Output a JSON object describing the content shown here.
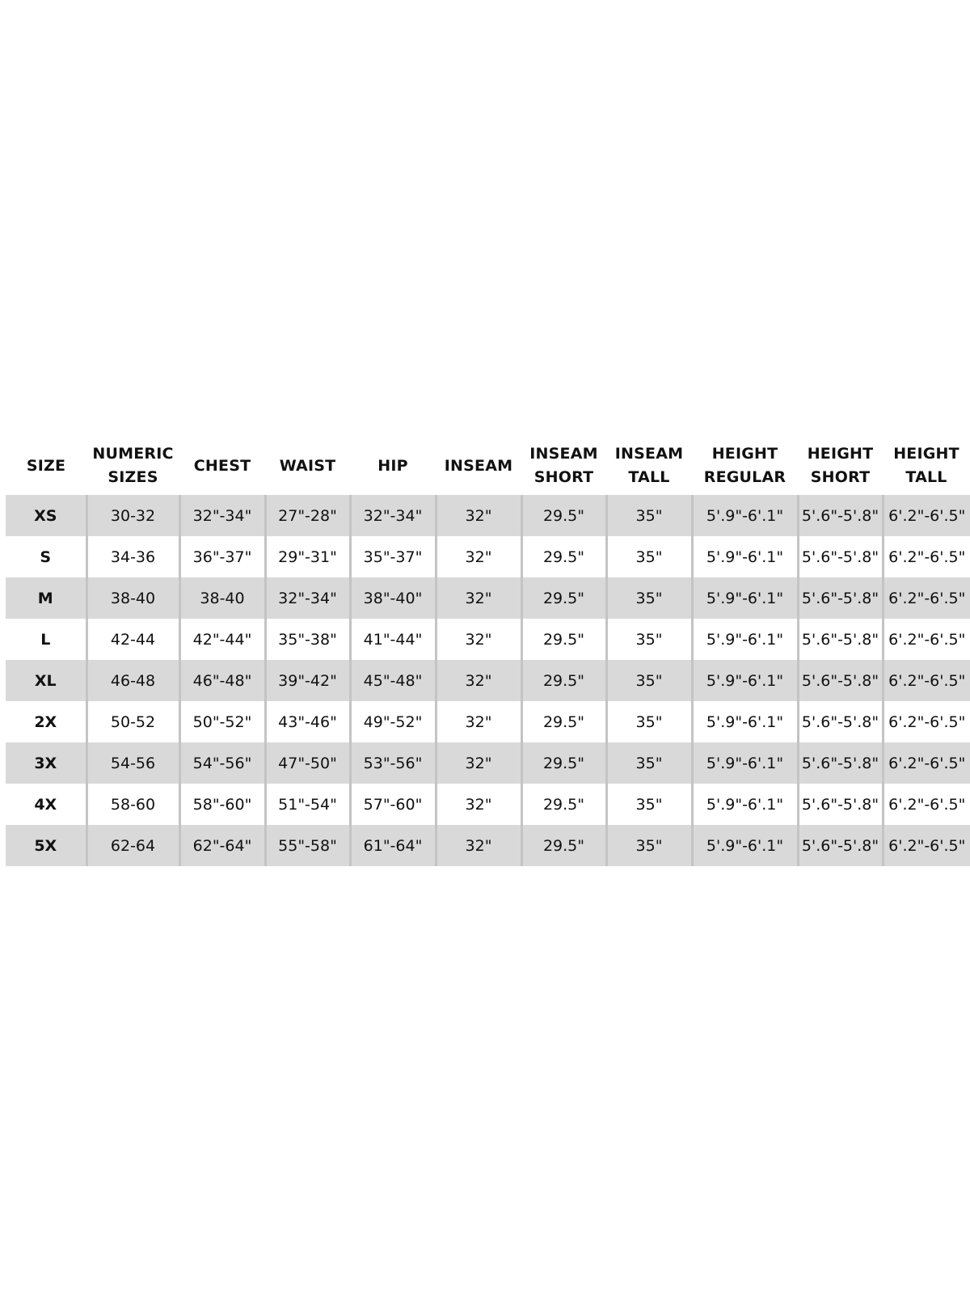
{
  "columns": [
    [
      "SIZE"
    ],
    [
      "NUMERIC",
      "SIZES"
    ],
    [
      "CHEST"
    ],
    [
      "WAIST"
    ],
    [
      "HIP"
    ],
    [
      "INSEAM"
    ],
    [
      "INSEAM",
      "SHORT"
    ],
    [
      "INSEAM",
      "TALL"
    ],
    [
      "HEIGHT",
      "REGULAR"
    ],
    [
      "HEIGHT",
      "SHORT"
    ],
    [
      "HEIGHT",
      "TALL"
    ]
  ],
  "rows": [
    [
      "XS",
      "30-32",
      "32\"-34\"",
      "27\"-28\"",
      "32\"-34\"",
      "32\"",
      "29.5\"",
      "35\"",
      "5'.9\"-6'.1\"",
      "5'.6\"-5'.8\"",
      "6'.2\"-6'.5\""
    ],
    [
      "S",
      "34-36",
      "36\"-37\"",
      "29\"-31\"",
      "35\"-37\"",
      "32\"",
      "29.5\"",
      "35\"",
      "5'.9\"-6'.1\"",
      "5'.6\"-5'.8\"",
      "6'.2\"-6'.5\""
    ],
    [
      "M",
      "38-40",
      "38-40",
      "32\"-34\"",
      "38\"-40\"",
      "32\"",
      "29.5\"",
      "35\"",
      "5'.9\"-6'.1\"",
      "5'.6\"-5'.8\"",
      "6'.2\"-6'.5\""
    ],
    [
      "L",
      "42-44",
      "42\"-44\"",
      "35\"-38\"",
      "41\"-44\"",
      "32\"",
      "29.5\"",
      "35\"",
      "5'.9\"-6'.1\"",
      "5'.6\"-5'.8\"",
      "6'.2\"-6'.5\""
    ],
    [
      "XL",
      "46-48",
      "46\"-48\"",
      "39\"-42\"",
      "45\"-48\"",
      "32\"",
      "29.5\"",
      "35\"",
      "5'.9\"-6'.1\"",
      "5'.6\"-5'.8\"",
      "6'.2\"-6'.5\""
    ],
    [
      "2X",
      "50-52",
      "50\"-52\"",
      "43\"-46\"",
      "49\"-52\"",
      "32\"",
      "29.5\"",
      "35\"",
      "5'.9\"-6'.1\"",
      "5'.6\"-5'.8\"",
      "6'.2\"-6'.5\""
    ],
    [
      "3X",
      "54-56",
      "54\"-56\"",
      "47\"-50\"",
      "53\"-56\"",
      "32\"",
      "29.5\"",
      "35\"",
      "5'.9\"-6'.1\"",
      "5'.6\"-5'.8\"",
      "6'.2\"-6'.5\""
    ],
    [
      "4X",
      "58-60",
      "58\"-60\"",
      "51\"-54\"",
      "57\"-60\"",
      "32\"",
      "29.5\"",
      "35\"",
      "5'.9\"-6'.1\"",
      "5'.6\"-5'.8\"",
      "6'.2\"-6'.5\""
    ],
    [
      "5X",
      "62-64",
      "62\"-64\"",
      "55\"-58\"",
      "61\"-64\"",
      "32\"",
      "29.5\"",
      "35\"",
      "5'.9\"-6'.1\"",
      "5'.6\"-5'.8\"",
      "6'.2\"-6'.5\""
    ]
  ],
  "colors": {
    "stripe": "#d9d9d9",
    "divider": "#c4c4c4",
    "text": "#111111"
  }
}
